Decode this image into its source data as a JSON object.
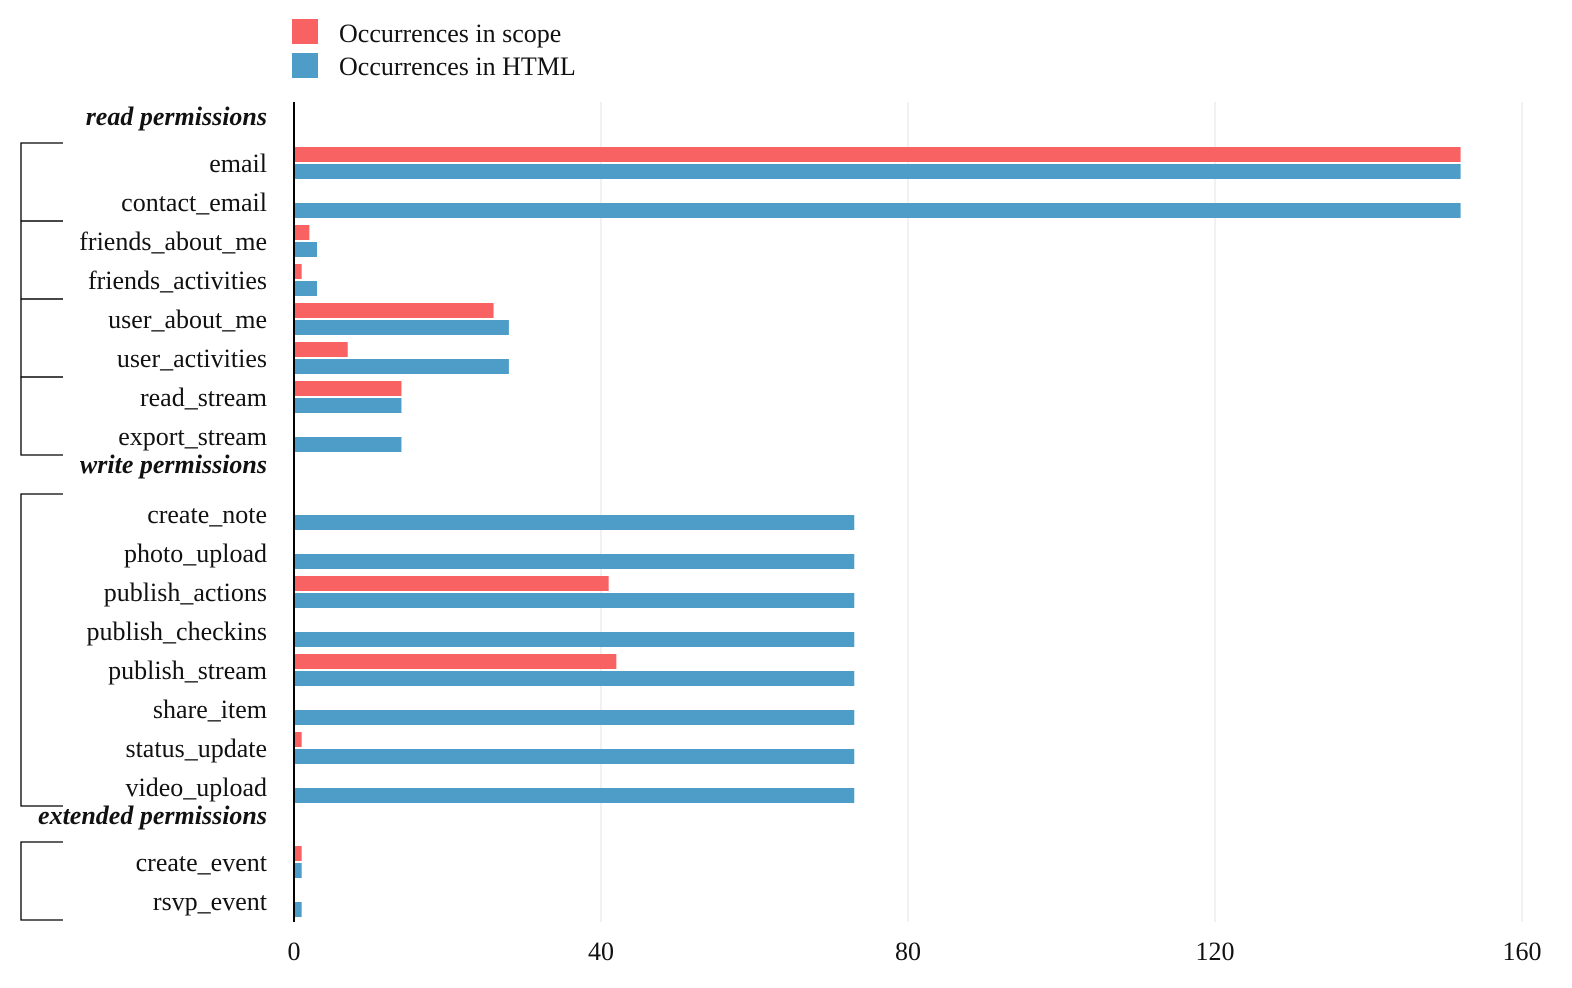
{
  "chart_data": {
    "type": "bar",
    "orientation": "horizontal",
    "legend": {
      "placement": "top-left",
      "entries": [
        {
          "name": "Occurrences in scope",
          "color": "#f96262"
        },
        {
          "name": "Occurrences in HTML",
          "color": "#4e9dc8"
        }
      ]
    },
    "xlim": [
      0,
      160
    ],
    "x_ticks": [
      "0",
      "40",
      "80",
      "120",
      "160"
    ],
    "grid": "vertical",
    "groups": [
      {
        "label": "read permissions",
        "items": [
          {
            "name": "email",
            "scope": 152,
            "html": 152
          },
          {
            "name": "contact_email",
            "scope": null,
            "html": 152
          },
          {
            "name": "friends_about_me",
            "scope": 2,
            "html": 3
          },
          {
            "name": "friends_activities",
            "scope": 1,
            "html": 3
          },
          {
            "name": "user_about_me",
            "scope": 26,
            "html": 28
          },
          {
            "name": "user_activities",
            "scope": 7,
            "html": 28
          },
          {
            "name": "read_stream",
            "scope": 14,
            "html": 14
          },
          {
            "name": "export_stream",
            "scope": null,
            "html": 14
          }
        ]
      },
      {
        "label": "write permissions",
        "items": [
          {
            "name": "create_note",
            "scope": null,
            "html": 73
          },
          {
            "name": "photo_upload",
            "scope": null,
            "html": 73
          },
          {
            "name": "publish_actions",
            "scope": 41,
            "html": 73
          },
          {
            "name": "publish_checkins",
            "scope": null,
            "html": 73
          },
          {
            "name": "publish_stream",
            "scope": 42,
            "html": 73
          },
          {
            "name": "share_item",
            "scope": null,
            "html": 73
          },
          {
            "name": "status_update",
            "scope": 1,
            "html": 73
          },
          {
            "name": "video_upload",
            "scope": null,
            "html": 73
          }
        ]
      },
      {
        "label": "extended permissions",
        "items": [
          {
            "name": "create_event",
            "scope": 1,
            "html": 1
          },
          {
            "name": "rsvp_event",
            "scope": null,
            "html": 1
          }
        ]
      }
    ]
  }
}
